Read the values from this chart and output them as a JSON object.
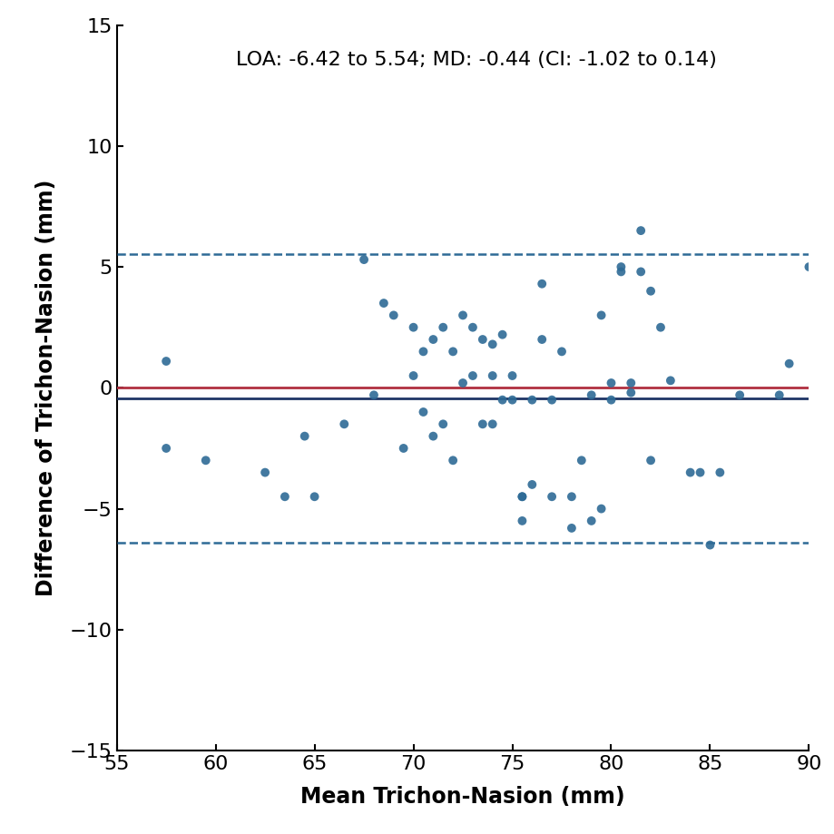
{
  "scatter_x": [
    57.5,
    57.5,
    59.5,
    62.5,
    63.5,
    64.5,
    65.0,
    66.5,
    67.5,
    68.0,
    68.5,
    69.0,
    69.5,
    70.0,
    70.0,
    70.5,
    70.5,
    71.0,
    71.0,
    71.5,
    71.5,
    72.0,
    72.0,
    72.5,
    72.5,
    73.0,
    73.0,
    73.5,
    73.5,
    74.0,
    74.0,
    74.0,
    74.5,
    74.5,
    75.0,
    75.0,
    75.5,
    75.5,
    75.5,
    76.0,
    76.0,
    76.5,
    76.5,
    77.0,
    77.0,
    77.5,
    78.0,
    78.0,
    78.5,
    79.0,
    79.0,
    79.5,
    79.5,
    80.0,
    80.0,
    80.5,
    80.5,
    81.0,
    81.0,
    81.5,
    81.5,
    82.0,
    82.0,
    82.5,
    83.0,
    84.0,
    84.5,
    85.0,
    85.5,
    86.5,
    88.5,
    89.0,
    90.0
  ],
  "scatter_y": [
    1.1,
    -2.5,
    -3.0,
    -3.5,
    -4.5,
    -2.0,
    -4.5,
    -1.5,
    5.3,
    -0.3,
    3.5,
    3.0,
    -2.5,
    2.5,
    0.5,
    1.5,
    -1.0,
    2.0,
    -2.0,
    2.5,
    -1.5,
    1.5,
    -3.0,
    3.0,
    0.2,
    2.5,
    0.5,
    2.0,
    -1.5,
    1.8,
    0.5,
    -1.5,
    2.2,
    -0.5,
    0.5,
    -0.5,
    -4.5,
    -4.5,
    -5.5,
    -0.5,
    -4.0,
    4.3,
    2.0,
    -0.5,
    -4.5,
    1.5,
    -5.8,
    -4.5,
    -3.0,
    -0.3,
    -5.5,
    -5.0,
    3.0,
    0.2,
    -0.5,
    4.8,
    5.0,
    -0.2,
    0.2,
    6.5,
    4.8,
    4.0,
    -3.0,
    2.5,
    0.3,
    -3.5,
    -3.5,
    -6.5,
    -3.5,
    -0.3,
    -0.3,
    1.0,
    5.0
  ],
  "loa_upper": 5.54,
  "loa_lower": -6.42,
  "mean_diff": -0.44,
  "zero_line": 0.0,
  "annotation": "LOA: -6.42 to 5.54; MD: -0.44 (CI: -1.02 to 0.14)",
  "xlabel": "Mean Trichon-Nasion (mm)",
  "ylabel": "Difference of Trichon-Nasion (mm)",
  "xlim": [
    55,
    90
  ],
  "ylim": [
    -15,
    15
  ],
  "xticks": [
    55,
    60,
    65,
    70,
    75,
    80,
    85,
    90
  ],
  "yticks": [
    -15,
    -10,
    -5,
    0,
    5,
    10,
    15
  ],
  "dot_color": "#2e6b96",
  "loa_color": "#2e6b96",
  "md_line_color": "#1f3566",
  "zero_line_color": "#b03040",
  "dot_size": 50,
  "dot_alpha": 0.9,
  "annotation_fontsize": 16,
  "label_fontsize": 17,
  "tick_fontsize": 16,
  "loa_linewidth": 1.8,
  "ref_linewidth": 2.0
}
